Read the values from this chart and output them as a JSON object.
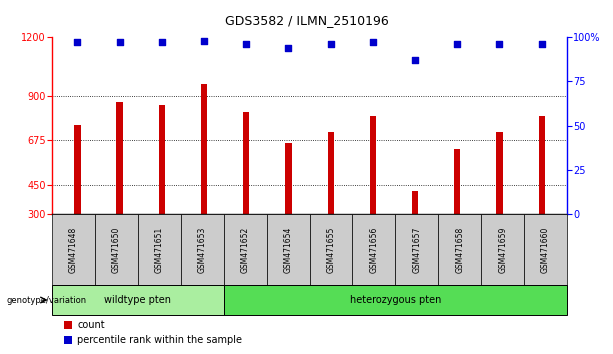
{
  "title": "GDS3582 / ILMN_2510196",
  "samples": [
    "GSM471648",
    "GSM471650",
    "GSM471651",
    "GSM471653",
    "GSM471652",
    "GSM471654",
    "GSM471655",
    "GSM471656",
    "GSM471657",
    "GSM471658",
    "GSM471659",
    "GSM471660"
  ],
  "bar_values": [
    755,
    870,
    855,
    960,
    820,
    660,
    720,
    800,
    420,
    630,
    720,
    800
  ],
  "percentile_values": [
    97,
    97,
    97,
    98,
    96,
    94,
    96,
    97,
    87,
    96,
    96,
    96
  ],
  "bar_color": "#cc0000",
  "dot_color": "#0000cc",
  "ylim_left": [
    300,
    1200
  ],
  "ylim_right": [
    0,
    100
  ],
  "yticks_left": [
    300,
    450,
    675,
    900,
    1200
  ],
  "yticks_right": [
    0,
    25,
    50,
    75,
    100
  ],
  "grid_values": [
    450,
    675,
    900
  ],
  "wildtype_count": 4,
  "wildtype_label": "wildtype pten",
  "hetero_label": "heterozygous pten",
  "genotype_label": "genotype/variation",
  "legend_count_label": "count",
  "legend_pct_label": "percentile rank within the sample",
  "bg_plot": "#ffffff",
  "bg_sample_labels": "#cccccc",
  "bg_wildtype": "#aaeea0",
  "bg_hetero": "#55dd55",
  "title_fontsize": 9,
  "tick_fontsize": 7,
  "label_fontsize": 7,
  "bar_width": 0.15
}
